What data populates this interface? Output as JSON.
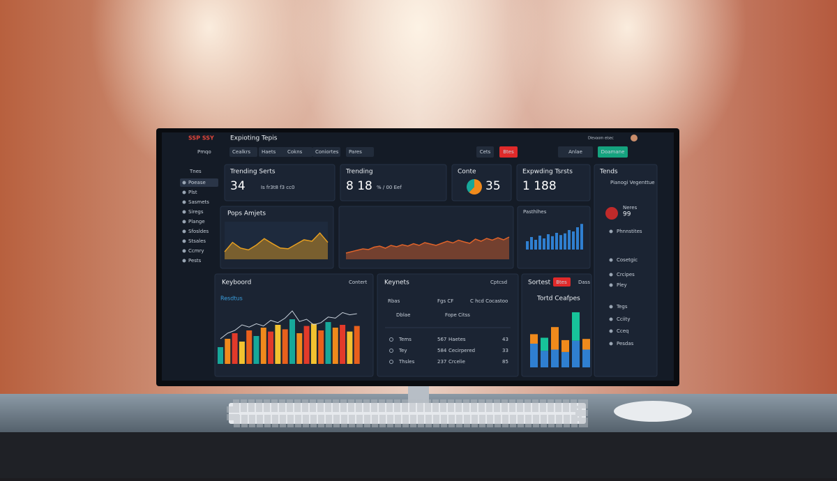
{
  "header": {
    "brand": "SSP SSY",
    "title": "Expioting Tepis",
    "status": "Dlevaom elsec"
  },
  "toolbar": {
    "workspace": "Pmqo",
    "tabs": [
      "Cealkrs",
      "Haets",
      "Cokns",
      "Coniortes",
      "Pares"
    ],
    "buttons": [
      "Cets",
      "Btes",
      "Anlae",
      "Doamane"
    ]
  },
  "sidebar": {
    "heading": "Tnes",
    "items": [
      "Poease",
      "Plst",
      "Sasmets",
      "Siregs",
      "Plange",
      "Sfosldes",
      "Stsales",
      "Ccmry",
      "Pests"
    ]
  },
  "cards": [
    {
      "title": "Trending Serts",
      "value": 34,
      "note": "Is fr3t8 f3 cc0"
    },
    {
      "title": "Trending",
      "value": "8 18",
      "note": "% / 00 Eef"
    },
    {
      "title": "Conte",
      "value": 35,
      "donut": [
        62,
        38
      ],
      "colors": [
        "#f08a1c",
        "#17a89a"
      ]
    },
    {
      "title": "Expwding Tsrsts",
      "value": "1 188"
    }
  ],
  "area_chart": {
    "title": "Pops Amjets",
    "color": "#e8a020",
    "values": [
      20,
      45,
      30,
      25,
      38,
      55,
      42,
      30,
      28,
      40,
      52,
      48,
      70,
      45
    ]
  },
  "wide_area": {
    "color": "#e0632a",
    "values": [
      18,
      22,
      26,
      30,
      28,
      35,
      38,
      32,
      40,
      36,
      42,
      38,
      45,
      40,
      48,
      44,
      40,
      46,
      52,
      47,
      55,
      50,
      46,
      58,
      52,
      60,
      55,
      62,
      56,
      64
    ]
  },
  "blue_bars": {
    "title": "Pasthlhes",
    "color": "#2f7fd0",
    "values": [
      30,
      45,
      35,
      50,
      40,
      55,
      48,
      60,
      52,
      58,
      70,
      65,
      80,
      92
    ]
  },
  "keyboard": {
    "title": "Keyboord",
    "action": "Contert",
    "subtitle": "Resdtus",
    "colors": [
      "#17a89a",
      "#f08a1c",
      "#e23a2a",
      "#f2c230",
      "#e8601c"
    ],
    "line_color": "#c9d2dc",
    "values": [
      30,
      45,
      55,
      40,
      60,
      50,
      65,
      58,
      70,
      62,
      80,
      55,
      68,
      72,
      60,
      75,
      65,
      70,
      58,
      68
    ],
    "line": [
      45,
      55,
      60,
      70,
      66,
      72,
      68,
      78,
      74,
      82,
      95,
      76,
      80,
      70,
      74,
      84,
      82,
      92,
      88,
      90
    ]
  },
  "keywords": {
    "title": "Keynets",
    "action": "Cptcsd",
    "chips": [
      "Rbas",
      "Fgs CF",
      "C hcd Cocastoo",
      "Dblae",
      "Fope Citss"
    ],
    "rows": [
      [
        "Tems",
        567,
        "Haetes",
        43
      ],
      [
        "Tey",
        584,
        "Cecirpered",
        33
      ],
      [
        "Thsles",
        237,
        "Crcelie",
        85
      ]
    ]
  },
  "stacked": {
    "title": "Sortest",
    "badge": "Btes",
    "action": "Dass",
    "subtitle": "Tortd Ceafpes",
    "series": [
      {
        "color": "#2f7fd0",
        "values": [
          40,
          28,
          30,
          26,
          45,
          30
        ]
      },
      {
        "color": "#f08a1c",
        "values": [
          16,
          0,
          38,
          20,
          0,
          18
        ]
      },
      {
        "color": "#17c39a",
        "values": [
          0,
          22,
          0,
          0,
          48,
          0
        ]
      }
    ]
  },
  "right_panel": {
    "title": "Tends",
    "subtitle": "Pianogi Vegenttue",
    "score_label": "Neres",
    "score": 99,
    "items": [
      "Phnnstites",
      "Cosetgic",
      "Crcipes",
      "Pley",
      "Tegs",
      "Cciity",
      "Cceq",
      "Pesdas"
    ]
  }
}
